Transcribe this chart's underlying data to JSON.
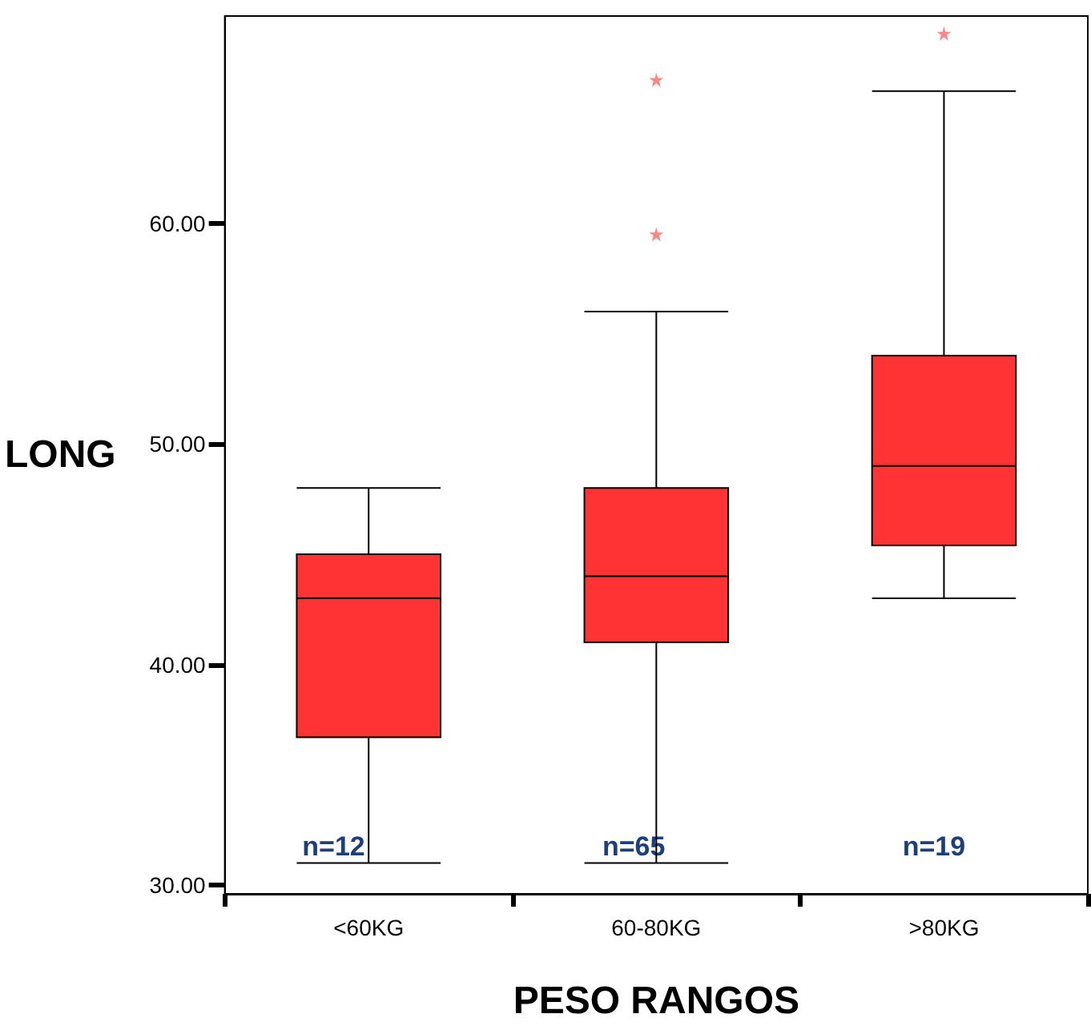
{
  "chart_data": {
    "type": "box",
    "xlabel": "PESO RANGOS",
    "ylabel": "LONG",
    "categories": [
      "<60KG",
      "60-80KG",
      ">80KG"
    ],
    "color": "#ff3333",
    "boxes": [
      {
        "low": 31,
        "q1": 36.7,
        "median": 43,
        "q3": 45,
        "high": 48
      },
      {
        "low": 31,
        "q1": 41,
        "median": 44,
        "q3": 48,
        "high": 56,
        "outliers": [
          59.5,
          66.5
        ]
      },
      {
        "low": 43,
        "q1": 45.4,
        "median": 49,
        "q3": 54,
        "high": 66,
        "outliers": [
          68.6
        ]
      }
    ],
    "ylim": [
      29.6,
      69.4
    ],
    "yticks": [
      {
        "value": 30,
        "label": "30.00"
      },
      {
        "value": 40,
        "label": "40.00"
      },
      {
        "value": 50,
        "label": "50.00"
      },
      {
        "value": 60,
        "label": "60.00"
      }
    ],
    "annotations": [
      "n=12",
      "n=65",
      "n=19"
    ],
    "grid": false,
    "marker": "star"
  }
}
